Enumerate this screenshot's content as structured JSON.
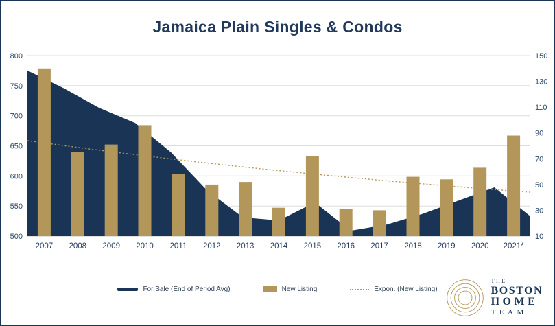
{
  "title": "Jamaica Plain Singles & Condos",
  "colors": {
    "navy": "#1a3456",
    "gold": "#b3975a",
    "grid": "#dedede",
    "title_text": "#22395c"
  },
  "chart_data": {
    "type": "combo",
    "title": "Jamaica Plain Singles & Condos",
    "categories": [
      "2007",
      "2008",
      "2009",
      "2010",
      "2011",
      "2012",
      "2013",
      "2014",
      "2015",
      "2016",
      "2017",
      "2018",
      "2019",
      "2020",
      "2021*"
    ],
    "series": [
      {
        "name": "For Sale (End of Period Avg)",
        "type": "area",
        "axis": "left",
        "color": "#1a3456",
        "values": [
          775,
          746,
          713,
          688,
          639,
          576,
          531,
          526,
          556,
          509,
          519,
          537,
          559,
          581,
          533
        ]
      },
      {
        "name": "New Listing",
        "type": "bar",
        "axis": "right",
        "color": "#b3975a",
        "values": [
          140,
          75,
          81,
          96,
          58,
          50,
          52,
          32,
          72,
          31,
          30,
          56,
          54,
          63,
          88
        ]
      },
      {
        "name": "Expon. (New Listing)",
        "type": "trend",
        "axis": "right",
        "color": "#b3975a",
        "start": 84,
        "end": 44
      }
    ],
    "left_axis": {
      "min": 500,
      "max": 800,
      "ticks": [
        500,
        550,
        600,
        650,
        700,
        750,
        800
      ]
    },
    "right_axis": {
      "min": 10,
      "max": 150,
      "ticks": [
        10,
        30,
        50,
        70,
        90,
        110,
        130,
        150
      ]
    },
    "grid": true,
    "legend_position": "bottom"
  },
  "legend": {
    "for_sale": "For Sale (End of Period Avg)",
    "new_listing": "New Listing",
    "expon": "Expon. (New Listing)"
  },
  "logo": {
    "the": "THE",
    "boston": "BOSTON",
    "home": "HOME",
    "team": "TEAM"
  }
}
